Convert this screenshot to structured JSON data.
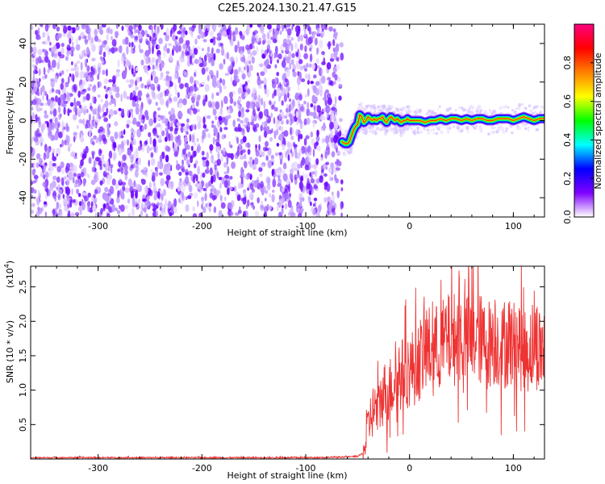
{
  "title": "C2E5.2024.130.21.47.G15",
  "chart_data": [
    {
      "type": "heatmap",
      "xlabel": "Height of straight line (km)",
      "ylabel": "Frequency (Hz)",
      "xlim": [
        -365,
        130
      ],
      "ylim": [
        -50,
        50
      ],
      "xticks": [
        -300,
        -200,
        -100,
        0,
        100
      ],
      "yticks": [
        -40,
        -20,
        0,
        20,
        40
      ],
      "noise_region_x": [
        -365,
        -65
      ],
      "signal_track": {
        "x": [
          -65,
          -62,
          -60,
          -58,
          -56,
          -54,
          -52,
          -50,
          -48,
          -46,
          -44,
          -42,
          -40,
          -38,
          -36,
          -34,
          -32,
          -30,
          -28,
          -26,
          -24,
          -22,
          -20,
          -18,
          -16,
          -14,
          -12,
          -10,
          -8,
          -6,
          -4,
          -2,
          0,
          5,
          10,
          15,
          20,
          25,
          30,
          35,
          40,
          45,
          50,
          55,
          60,
          65,
          70,
          75,
          80,
          85,
          90,
          95,
          100,
          105,
          110,
          115,
          120,
          125,
          130
        ],
        "y": [
          -11,
          -12,
          -12,
          -11,
          -8,
          -5,
          -3,
          -2,
          3,
          2,
          -1,
          0,
          2,
          1,
          0,
          1,
          0,
          1,
          1,
          2,
          0,
          -1,
          1,
          2,
          1,
          0,
          1,
          0,
          -1,
          0,
          0,
          1,
          0,
          0,
          0,
          -1,
          0,
          0,
          1,
          0,
          1,
          1,
          0,
          1,
          0,
          1,
          1,
          0,
          0,
          1,
          1,
          1,
          0,
          1,
          2,
          1,
          0,
          1,
          1
        ]
      },
      "colorbar": {
        "label": "Normalized spectral amplitude",
        "range": [
          0,
          1
        ],
        "ticks": [
          0.0,
          0.2,
          0.4,
          0.6,
          0.8
        ],
        "tick_labels": [
          "0.0",
          "0.2",
          "0.4",
          "0.6",
          "0.8"
        ],
        "colors": [
          "#ffffff",
          "#8000ff",
          "#0000ff",
          "#00ffff",
          "#00ff00",
          "#ffff00",
          "#ff8000",
          "#ff0000",
          "#ff0080"
        ]
      }
    },
    {
      "type": "line",
      "xlabel": "Height of straight line (km)",
      "ylabel": "SNR (10 * v/v)",
      "y_scale_label": "(x10",
      "y_scale_exp": "4",
      "y_scale_close": ")",
      "xlim": [
        -365,
        130
      ],
      "ylim": [
        0,
        2.8
      ],
      "xticks": [
        -300,
        -200,
        -100,
        0,
        100
      ],
      "yticks": [
        0.5,
        1.0,
        1.5,
        2.0,
        2.5
      ],
      "ytick_labels": [
        "0.5",
        "1.0",
        "1.5",
        "2.0",
        "2.5"
      ],
      "color": "#ee3333",
      "series": [
        {
          "x": [
            -365,
            -300,
            -200,
            -100,
            -60,
            -50,
            -45,
            -42,
            -40,
            -38,
            -35,
            -32,
            -30,
            -28,
            -25,
            -22,
            -20,
            -18,
            -15,
            -12,
            -10,
            -5,
            0,
            5,
            10,
            15,
            20,
            25,
            30,
            35,
            40,
            45,
            50,
            55,
            60,
            65,
            70,
            75,
            80,
            85,
            90,
            95,
            100,
            105,
            110,
            115,
            120,
            125,
            130
          ],
          "y": [
            0.02,
            0.02,
            0.02,
            0.02,
            0.03,
            0.04,
            0.08,
            0.25,
            0.45,
            0.6,
            0.7,
            0.75,
            0.7,
            0.85,
            0.95,
            1.0,
            0.95,
            1.05,
            1.15,
            1.1,
            1.2,
            1.25,
            1.3,
            1.35,
            1.45,
            1.55,
            1.6,
            1.6,
            1.65,
            1.7,
            1.75,
            1.75,
            1.8,
            1.7,
            1.75,
            1.8,
            1.7,
            1.65,
            1.75,
            1.7,
            1.6,
            1.75,
            1.65,
            1.7,
            1.55,
            1.6,
            1.7,
            1.6,
            1.65
          ]
        }
      ]
    }
  ]
}
